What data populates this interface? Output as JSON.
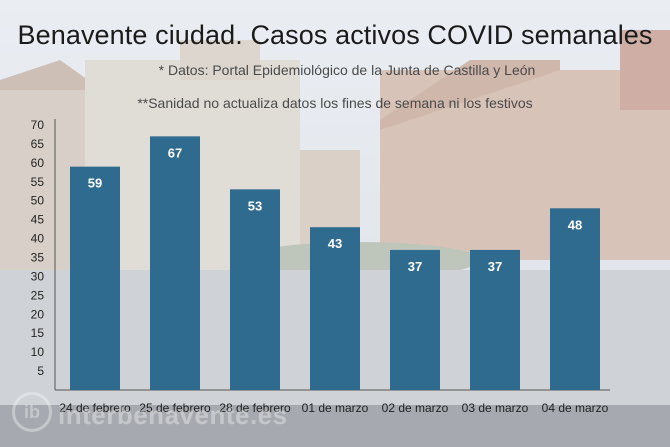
{
  "title": "Benavente ciudad. Casos activos COVID semanales",
  "notes": [
    "* Datos: Portal Epidemiológico de la Junta de Castilla y León",
    "**Sanidad no actualiza datos los fines de semana ni los festivos"
  ],
  "watermark": "interbenavente.es",
  "watermark_logo": "ib",
  "colors": {
    "bar": "#2f6a8f",
    "bar_label": "#ffffff"
  },
  "chart_data": {
    "type": "bar",
    "title": "Benavente ciudad. Casos activos COVID semanales",
    "categories": [
      "24 de febrero",
      "25 de febrero",
      "28 de febrero",
      "01 de marzo",
      "02 de marzo",
      "03 de marzo",
      "04 de marzo"
    ],
    "values": [
      59,
      67,
      53,
      43,
      37,
      37,
      48
    ],
    "ylim": [
      0,
      70
    ],
    "yticks": [
      5,
      10,
      15,
      20,
      25,
      30,
      35,
      40,
      45,
      50,
      55,
      60,
      65,
      70
    ],
    "xlabel": "",
    "ylabel": "",
    "data_labels": true,
    "grid": false,
    "legend": "none"
  }
}
